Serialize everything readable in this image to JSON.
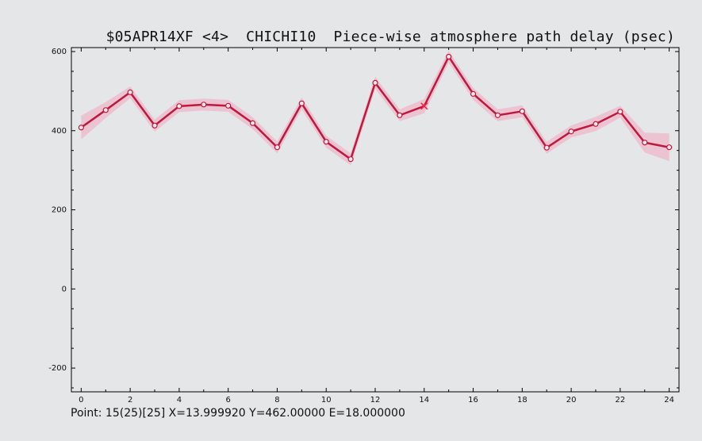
{
  "header": {
    "title": "$05APR14XF <4>  CHICHI10  Piece-wise atmosphere path delay (psec)"
  },
  "status": {
    "text": "Point: 15(25)[25] X=13.999920 Y=462.00000 E=18.000000"
  },
  "colors": {
    "line": "#c0183c",
    "error_band": "#f2a6bc",
    "marker_fill": "#fde8ee",
    "highlight": "#ff2040",
    "axis": "#000000"
  },
  "chart_data": {
    "type": "line",
    "title": "$05APR14XF <4>  CHICHI10  Piece-wise atmosphere path delay (psec)",
    "xlabel": "",
    "ylabel": "",
    "xlim": [
      -0.4,
      24.4
    ],
    "ylim": [
      -260,
      610
    ],
    "x_ticks": [
      0,
      2,
      4,
      6,
      8,
      10,
      12,
      14,
      16,
      18,
      20,
      22,
      24
    ],
    "y_ticks": [
      -200,
      0,
      200,
      400,
      600
    ],
    "grid": false,
    "highlighted_point": {
      "x": 14,
      "y": 462,
      "e": 18
    },
    "x": [
      0,
      1,
      2,
      3,
      4,
      5,
      6,
      7,
      8,
      9,
      10,
      11,
      12,
      13,
      14,
      15,
      16,
      17,
      18,
      19,
      20,
      21,
      22,
      23,
      24
    ],
    "y": [
      408,
      452,
      497,
      413,
      462,
      466,
      463,
      419,
      358,
      469,
      372,
      328,
      521,
      439,
      462,
      587,
      493,
      439,
      449,
      357,
      398,
      417,
      448,
      370,
      358
    ],
    "errors": [
      30,
      20,
      15,
      15,
      15,
      15,
      15,
      15,
      15,
      15,
      15,
      15,
      15,
      15,
      18,
      15,
      15,
      15,
      15,
      15,
      15,
      18,
      15,
      25,
      35
    ]
  }
}
